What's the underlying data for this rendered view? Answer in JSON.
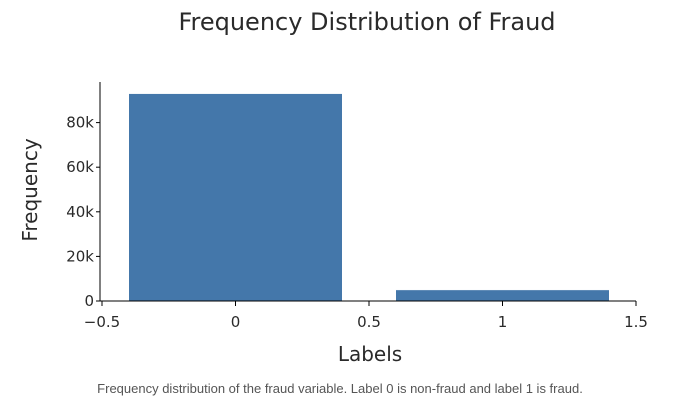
{
  "chart_data": {
    "type": "bar",
    "title": "Frequency Distribution of Fraud",
    "xlabel": "Labels",
    "ylabel": "Frequency",
    "categories": [
      0,
      1
    ],
    "bar_width": 0.8,
    "values": [
      93000,
      5000
    ],
    "xlim": [
      -0.5,
      1.5
    ],
    "ylim": [
      0,
      100000
    ],
    "x_ticks": [
      -0.5,
      0,
      0.5,
      1,
      1.5
    ],
    "x_tick_labels": [
      "−0.5",
      "0",
      "0.5",
      "1",
      "1.5"
    ],
    "y_ticks": [
      0,
      20000,
      40000,
      60000,
      80000
    ],
    "y_tick_labels": [
      "0",
      "20k",
      "40k",
      "60k",
      "80k"
    ],
    "grid": false,
    "bar_color": "#4477aa"
  },
  "caption": "Frequency distribution of the fraud variable. Label 0 is non-fraud and label 1 is fraud."
}
